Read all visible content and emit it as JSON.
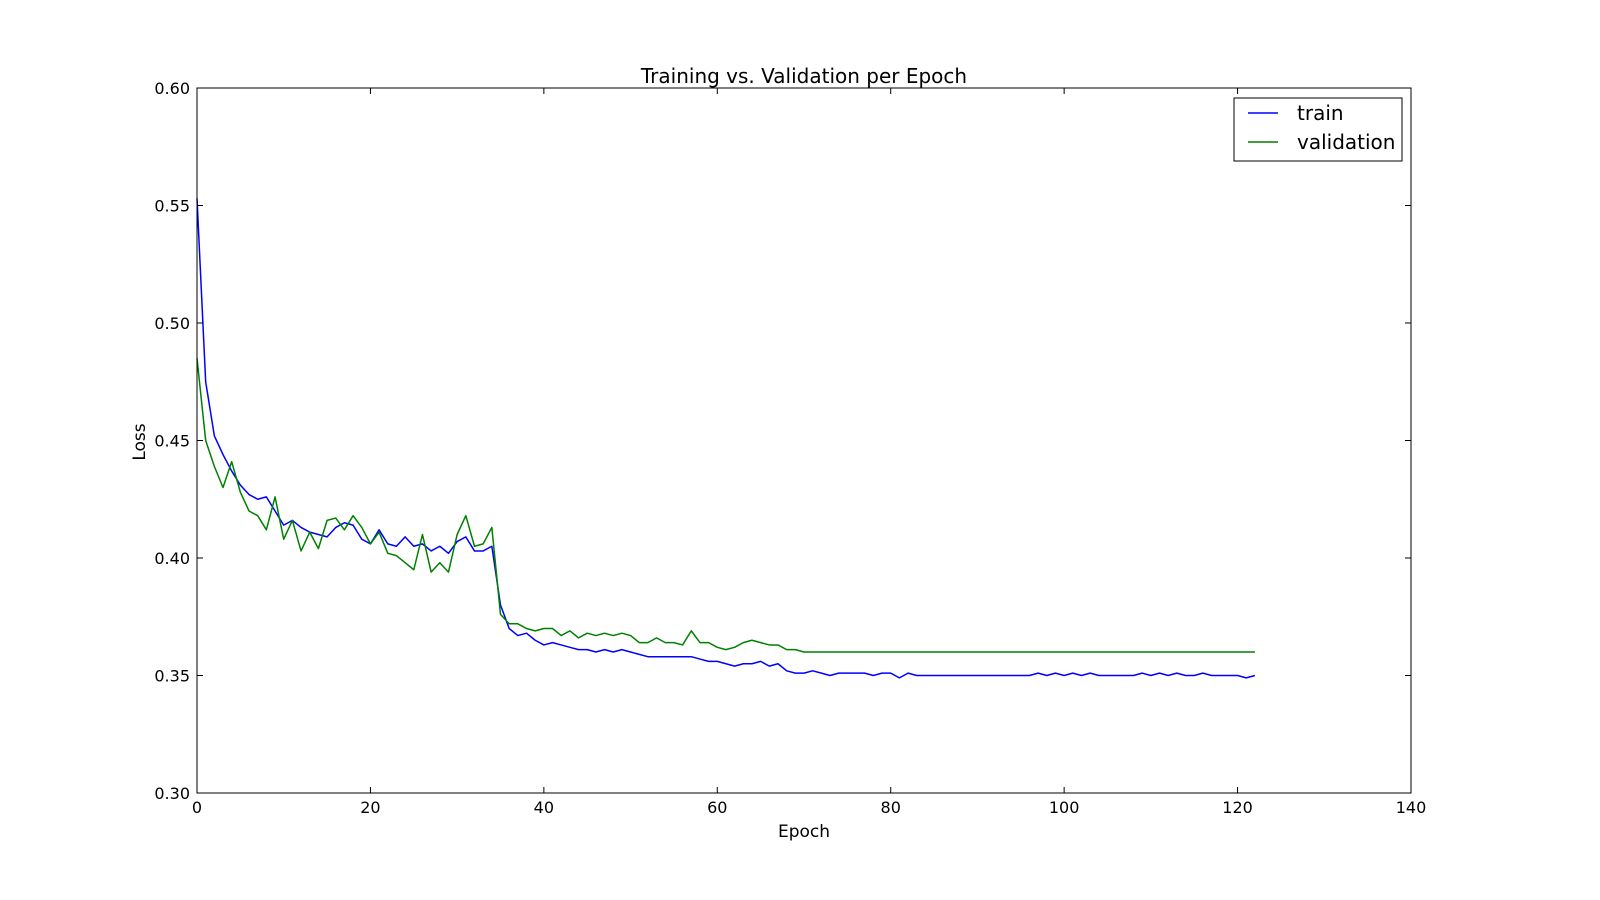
{
  "chart_data": {
    "type": "line",
    "title": "Training vs. Validation per Epoch",
    "xlabel": "Epoch",
    "ylabel": "Loss",
    "xlim": [
      0,
      140
    ],
    "ylim": [
      0.3,
      0.6
    ],
    "xticks": [
      "0",
      "20",
      "40",
      "60",
      "80",
      "100",
      "120",
      "140"
    ],
    "yticks": [
      "0.30",
      "0.35",
      "0.40",
      "0.45",
      "0.50",
      "0.55",
      "0.60"
    ],
    "grid": false,
    "legend_position": "top-right",
    "series": [
      {
        "name": "train",
        "color": "#0000ff",
        "x_start": 0,
        "x_step": 1,
        "values": [
          0.553,
          0.475,
          0.452,
          0.444,
          0.437,
          0.431,
          0.427,
          0.425,
          0.426,
          0.42,
          0.414,
          0.416,
          0.413,
          0.411,
          0.41,
          0.409,
          0.413,
          0.415,
          0.414,
          0.408,
          0.406,
          0.412,
          0.406,
          0.405,
          0.409,
          0.405,
          0.406,
          0.403,
          0.405,
          0.402,
          0.407,
          0.409,
          0.403,
          0.403,
          0.405,
          0.38,
          0.37,
          0.367,
          0.368,
          0.365,
          0.363,
          0.364,
          0.363,
          0.362,
          0.361,
          0.361,
          0.36,
          0.361,
          0.36,
          0.361,
          0.36,
          0.359,
          0.358,
          0.358,
          0.358,
          0.358,
          0.358,
          0.358,
          0.357,
          0.356,
          0.356,
          0.355,
          0.354,
          0.355,
          0.355,
          0.356,
          0.354,
          0.355,
          0.352,
          0.351,
          0.351,
          0.352,
          0.351,
          0.35,
          0.351,
          0.351,
          0.351,
          0.351,
          0.35,
          0.351,
          0.351,
          0.349,
          0.351,
          0.35,
          0.35,
          0.35,
          0.35,
          0.35,
          0.35,
          0.35,
          0.35,
          0.35,
          0.35,
          0.35,
          0.35,
          0.35,
          0.35,
          0.351,
          0.35,
          0.351,
          0.35,
          0.351,
          0.35,
          0.351,
          0.35,
          0.35,
          0.35,
          0.35,
          0.35,
          0.351,
          0.35,
          0.351,
          0.35,
          0.351,
          0.35,
          0.35,
          0.351,
          0.35,
          0.35,
          0.35,
          0.35,
          0.349,
          0.35
        ]
      },
      {
        "name": "validation",
        "color": "#008000",
        "x_start": 0,
        "x_step": 1,
        "values": [
          0.485,
          0.45,
          0.439,
          0.43,
          0.441,
          0.428,
          0.42,
          0.418,
          0.412,
          0.426,
          0.408,
          0.416,
          0.403,
          0.411,
          0.404,
          0.416,
          0.417,
          0.412,
          0.418,
          0.413,
          0.406,
          0.411,
          0.402,
          0.401,
          0.398,
          0.395,
          0.41,
          0.394,
          0.398,
          0.394,
          0.41,
          0.418,
          0.405,
          0.406,
          0.413,
          0.376,
          0.372,
          0.372,
          0.37,
          0.369,
          0.37,
          0.37,
          0.367,
          0.369,
          0.366,
          0.368,
          0.367,
          0.368,
          0.367,
          0.368,
          0.367,
          0.364,
          0.364,
          0.366,
          0.364,
          0.364,
          0.363,
          0.369,
          0.364,
          0.364,
          0.362,
          0.361,
          0.362,
          0.364,
          0.365,
          0.364,
          0.363,
          0.363,
          0.361,
          0.361,
          0.36,
          0.36,
          0.36,
          0.36,
          0.36,
          0.36,
          0.36,
          0.36,
          0.36,
          0.36,
          0.36,
          0.36,
          0.36,
          0.36,
          0.36,
          0.36,
          0.36,
          0.36,
          0.36,
          0.36,
          0.36,
          0.36,
          0.36,
          0.36,
          0.36,
          0.36,
          0.36,
          0.36,
          0.36,
          0.36,
          0.36,
          0.36,
          0.36,
          0.36,
          0.36,
          0.36,
          0.36,
          0.36,
          0.36,
          0.36,
          0.36,
          0.36,
          0.36,
          0.36,
          0.36,
          0.36,
          0.36,
          0.36,
          0.36,
          0.36,
          0.36,
          0.36,
          0.36
        ]
      }
    ]
  }
}
